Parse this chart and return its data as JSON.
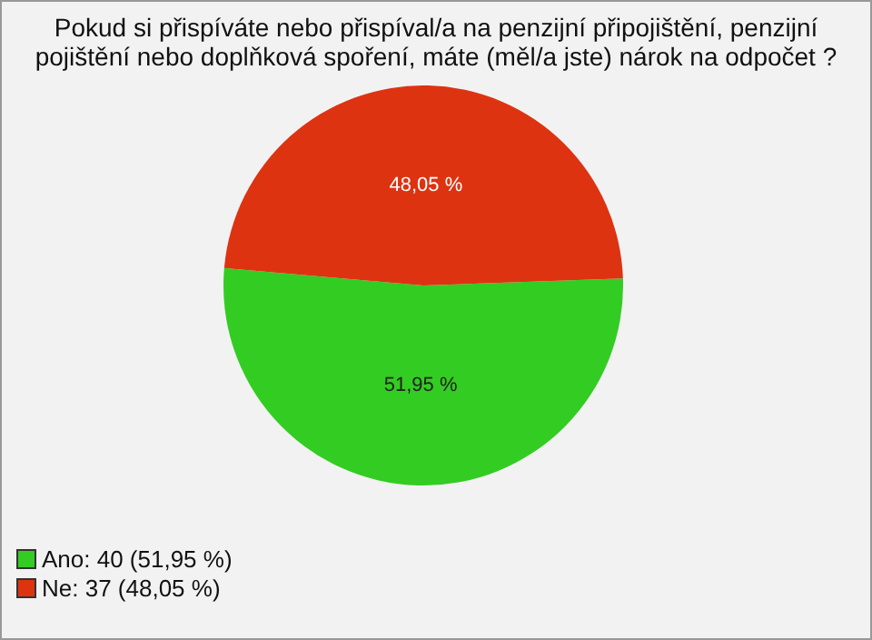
{
  "chart_data": {
    "type": "pie",
    "title": "Pokud si přispíváte nebo přispíval/a na penzijní připojištění, penzijní pojištění nebo doplňková spoření, máte (měl/a jste) nárok na odpočet ?",
    "categories": [
      "Ano: 40 (51,95 %)",
      "Ne: 37 (48,05 %)"
    ],
    "values": [
      51.95,
      48.05
    ],
    "colors": [
      "#33cc22",
      "#dd3311"
    ],
    "value_labels": [
      "51,95 %",
      "48,05 %"
    ],
    "legend": "bottom left"
  }
}
